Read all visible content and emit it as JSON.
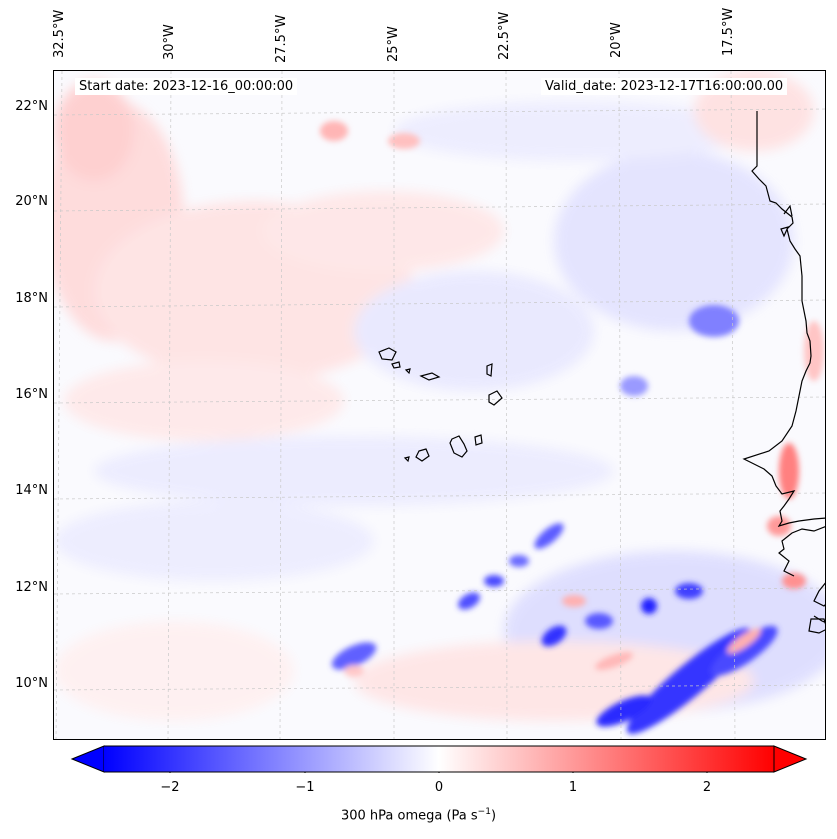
{
  "map": {
    "start_date_label": "Start date: 2023-12-16_00:00:00",
    "valid_date_label": "Valid_date: 2023-12-17T16:00:00.00",
    "lon_labels": [
      "32.5°W",
      "30°W",
      "27.5°W",
      "25°W",
      "22.5°W",
      "20°W",
      "17.5°W"
    ],
    "lat_labels": [
      "22°N",
      "20°N",
      "18°N",
      "16°N",
      "14°N",
      "12°N",
      "10°N"
    ],
    "coastline_color": "#000000",
    "gridline_color": "#c8c8c8",
    "field_colors": {
      "negative": "#0000ff",
      "zero": "#ffffff",
      "positive": "#ff0000"
    }
  },
  "colorbar": {
    "ticks": [
      "−2",
      "−1",
      "0",
      "1",
      "2"
    ],
    "label_text": "300 hPa omega (Pa s",
    "label_sup": "−1",
    "label_close": ")",
    "min": -2.7,
    "max": 2.7,
    "extend": "both"
  }
}
